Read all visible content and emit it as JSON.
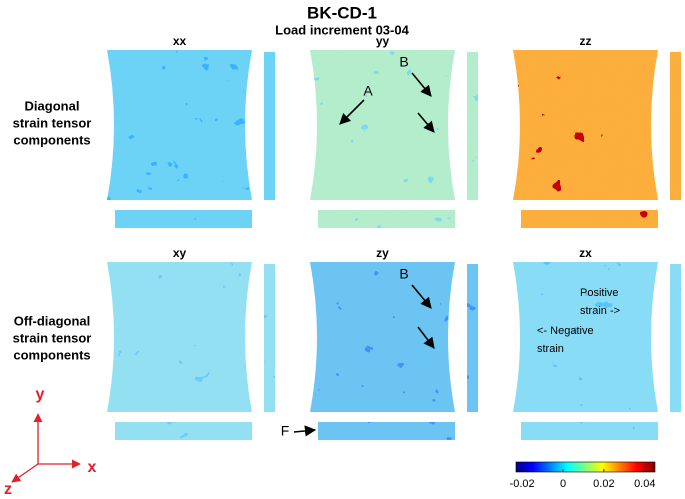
{
  "chart_data": {
    "type": "heatmap-grid",
    "title": "BK-CD-1",
    "subtitle": "Load increment 03-04",
    "row_labels": [
      [
        "Diagonal",
        "strain tensor",
        "components"
      ],
      [
        "Off-diagonal",
        "strain tensor",
        "components"
      ]
    ],
    "panels": [
      "xx",
      "yy",
      "zz",
      "xy",
      "zy",
      "zx"
    ],
    "annotations": [
      [
        "A"
      ],
      [
        "B"
      ],
      [
        "B"
      ],
      [
        "F"
      ],
      [
        "Positive",
        "strain ->"
      ],
      [
        "<- Negative",
        "strain"
      ]
    ],
    "axes": [
      "x",
      "y",
      "z"
    ],
    "colorbar": {
      "lim": [
        -0.023,
        0.045
      ],
      "ticks": [
        -0.02,
        0,
        0.02,
        0.04
      ]
    }
  }
}
